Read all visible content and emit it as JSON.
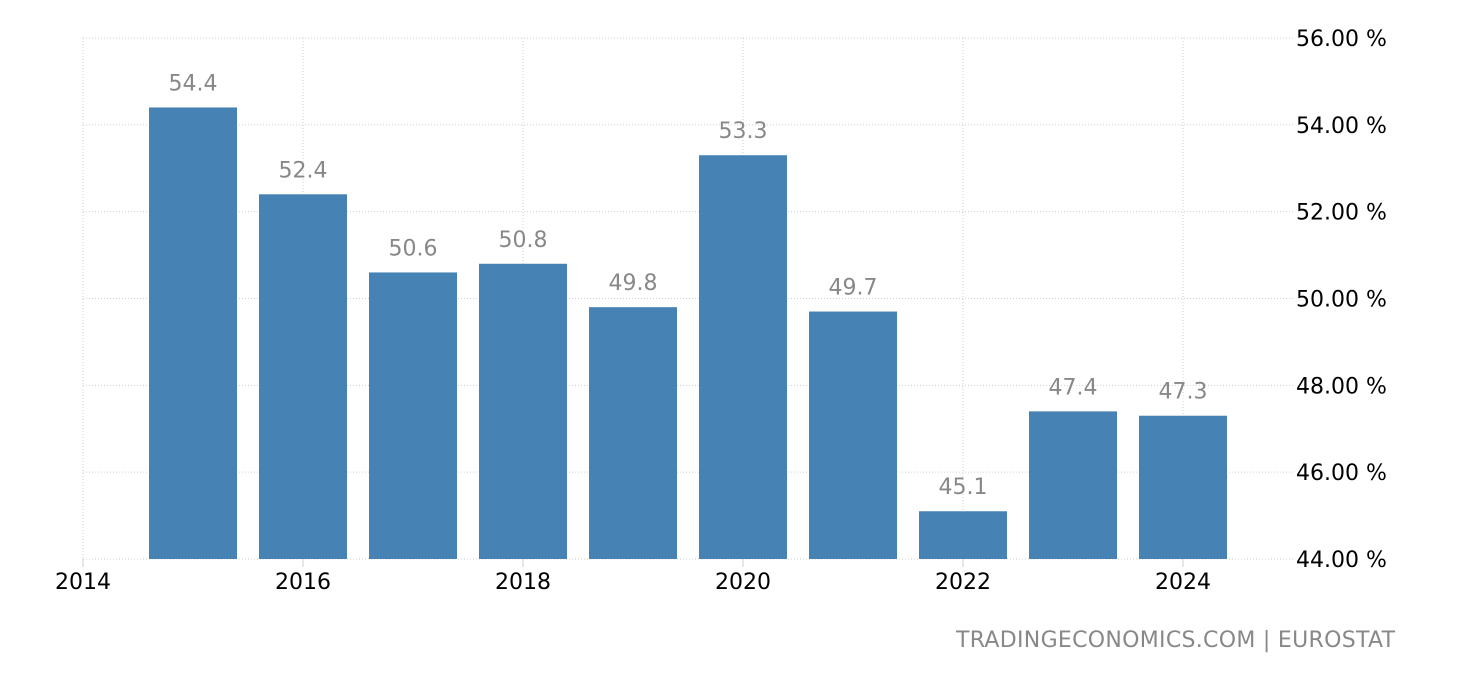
{
  "chart_data": {
    "type": "bar",
    "categories": [
      "2015",
      "2016",
      "2017",
      "2018",
      "2019",
      "2020",
      "2021",
      "2022",
      "2023",
      "2024"
    ],
    "x": [
      2015,
      2016,
      2017,
      2018,
      2019,
      2020,
      2021,
      2022,
      2023,
      2024
    ],
    "values": [
      54.4,
      52.4,
      50.6,
      50.8,
      49.8,
      53.3,
      49.7,
      45.1,
      47.4,
      47.3
    ],
    "data_labels": [
      "54.4",
      "52.4",
      "50.6",
      "50.8",
      "49.8",
      "53.3",
      "49.7",
      "45.1",
      "47.4",
      "47.3"
    ],
    "ylim": [
      44,
      56
    ],
    "yticks": [
      44,
      46,
      48,
      50,
      52,
      54,
      56
    ],
    "ytick_labels": [
      "44.00 %",
      "46.00 %",
      "48.00 %",
      "50.00 %",
      "52.00 %",
      "54.00 %",
      "56.00 %"
    ],
    "xticks": [
      2014,
      2016,
      2018,
      2020,
      2022,
      2024
    ],
    "xtick_labels": [
      "2014",
      "2016",
      "2018",
      "2020",
      "2022",
      "2024"
    ],
    "y_axis_position": "right",
    "grid": true,
    "bar_color": "#4682b4",
    "label_color": "#888888"
  },
  "source": "TRADINGECONOMICS.COM | EUROSTAT"
}
